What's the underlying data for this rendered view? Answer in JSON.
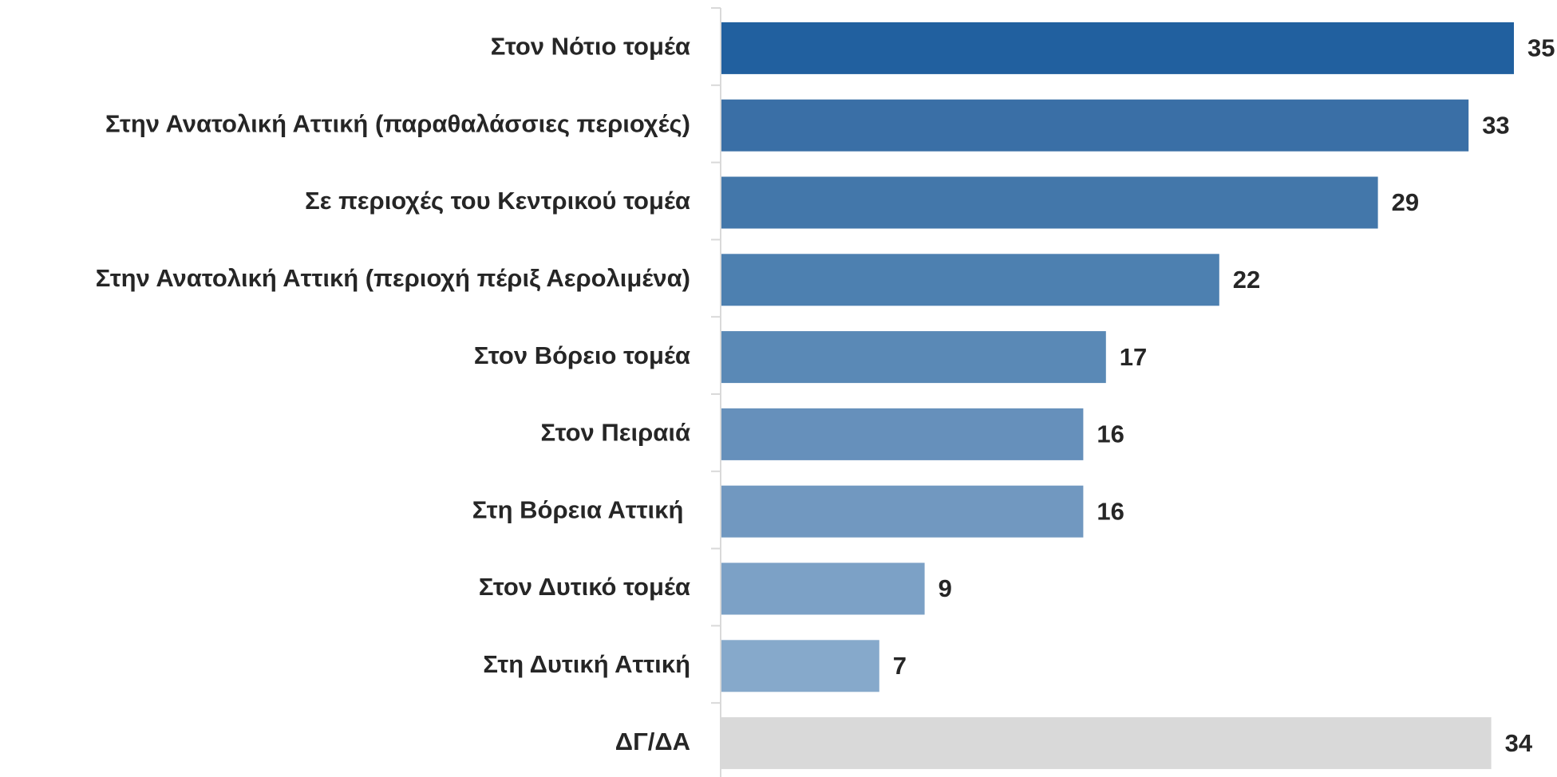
{
  "chart_data": {
    "type": "bar",
    "orientation": "horizontal",
    "categories": [
      "Στον Νότιο τομέα",
      "Στην Ανατολική Αττική (παραθαλάσσιες περιοχές)",
      "Σε περιοχές του Κεντρικού τομέα",
      "Στην Ανατολική Αττική (περιοχή πέριξ Αερολιμένα)",
      "Στον Βόρειο τομέα",
      "Στον Πειραιά",
      "Στη Βόρεια Αττική ",
      "Στον Δυτικό τομέα",
      "Στη Δυτική Αττική",
      "ΔΓ/ΔΑ"
    ],
    "values": [
      35,
      33,
      29,
      22,
      17,
      16,
      16,
      9,
      7,
      34
    ],
    "colors": [
      "#21609f",
      "#3a6fa6",
      "#4377aa",
      "#4d80b0",
      "#5a89b6",
      "#6690bb",
      "#7198c0",
      "#7ca1c6",
      "#86a9cb",
      "#d9d9d9"
    ],
    "xlim": [
      0,
      35
    ]
  }
}
